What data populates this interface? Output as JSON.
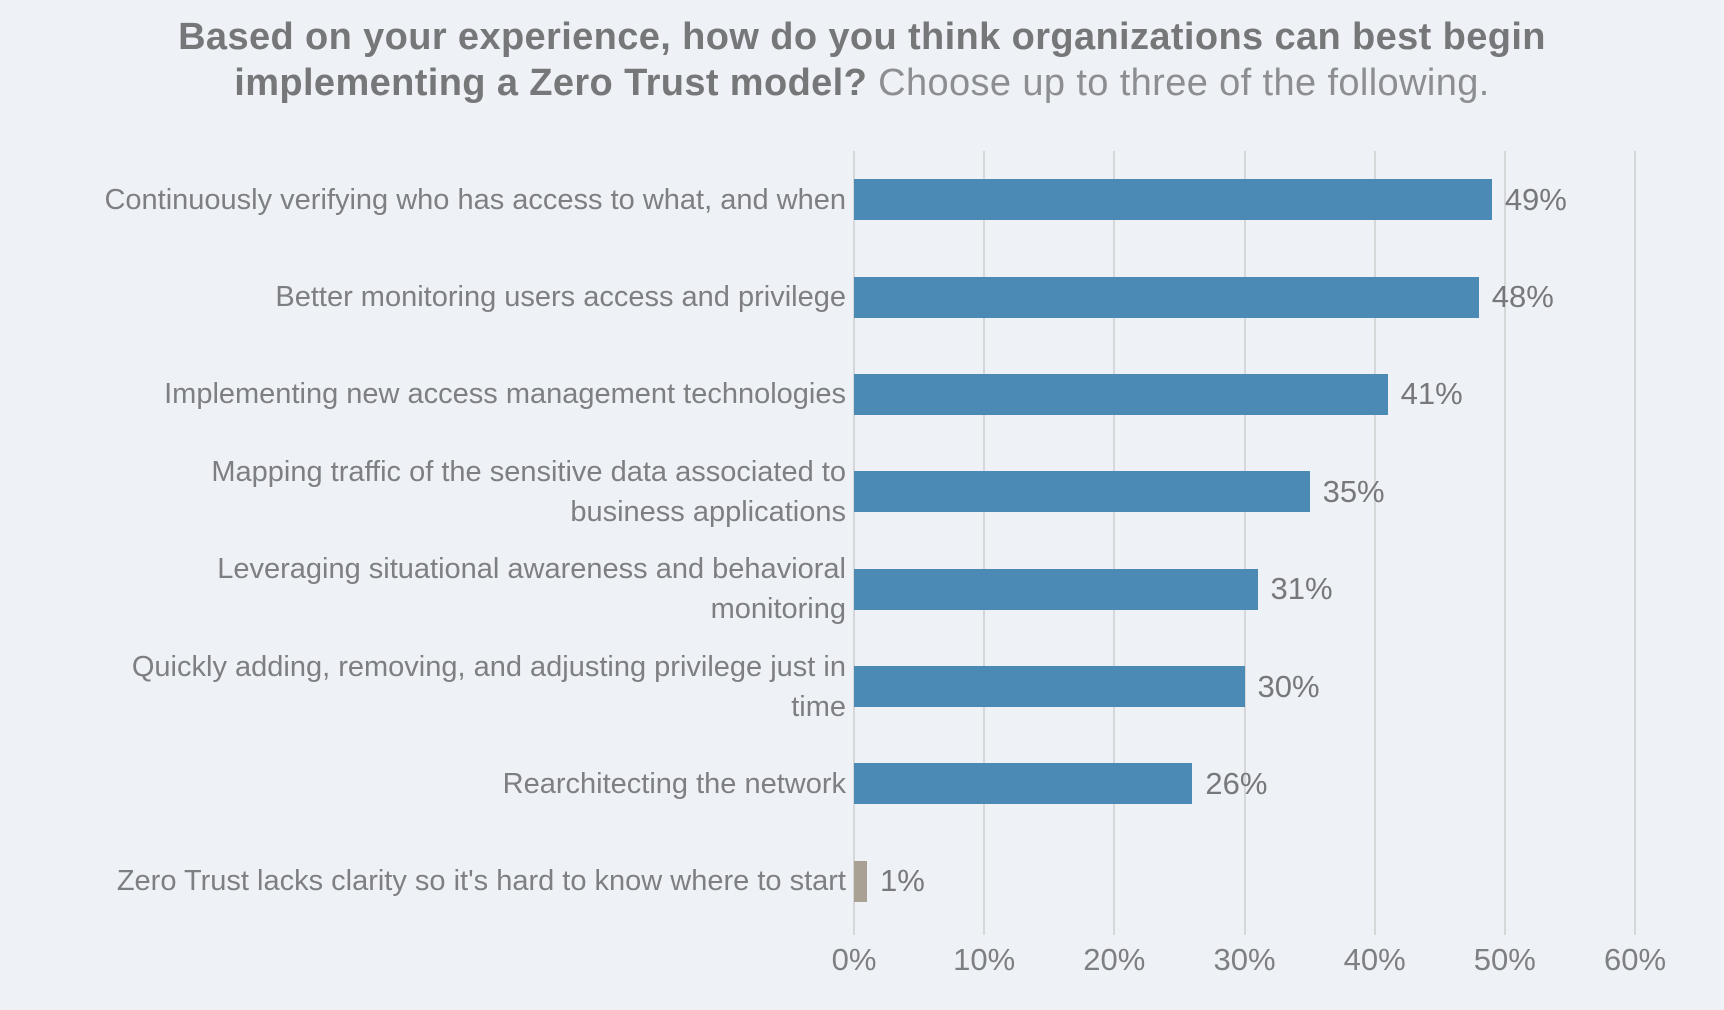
{
  "title": {
    "question": "Based on your experience, how do you think organizations can best begin implementing a Zero Trust model?",
    "instruction": "Choose up to three of the following."
  },
  "colors": {
    "background": "#eef1f5",
    "bar": "#4b8ab4",
    "bar_highlight": "#a9a193",
    "gridline": "#d6d7d9",
    "text": "#7e7f82"
  },
  "chart_data": {
    "type": "bar",
    "orientation": "horizontal",
    "title": "Based on your experience, how do you think organizations can best begin implementing a Zero Trust model? Choose up to three of the following.",
    "categories": [
      "Continuously verifying who has access to what, and when",
      "Better monitoring users access and privilege",
      "Implementing new access management technologies",
      "Mapping traffic of the sensitive data associated to business applications",
      "Leveraging situational awareness and behavioral monitoring",
      "Quickly adding, removing, and adjusting privilege just in time",
      "Rearchitecting the network",
      "Zero Trust lacks clarity so it's hard to know where to start"
    ],
    "values": [
      49,
      48,
      41,
      35,
      31,
      30,
      26,
      1
    ],
    "value_labels": [
      "49%",
      "48%",
      "41%",
      "35%",
      "31%",
      "30%",
      "26%",
      "1%"
    ],
    "bar_colors": [
      "#4b8ab4",
      "#4b8ab4",
      "#4b8ab4",
      "#4b8ab4",
      "#4b8ab4",
      "#4b8ab4",
      "#4b8ab4",
      "#a9a193"
    ],
    "xlabel": "",
    "ylabel": "",
    "xlim": [
      0,
      60
    ],
    "x_ticks": [
      "0%",
      "10%",
      "20%",
      "30%",
      "40%",
      "50%",
      "60%"
    ],
    "grid": true,
    "legend": false
  }
}
